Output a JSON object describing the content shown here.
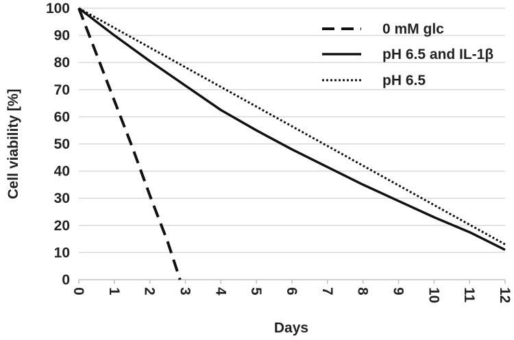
{
  "chart_data": {
    "type": "line",
    "xlabel": "Days",
    "ylabel": "Cell viability [%]",
    "xlim": [
      0,
      12
    ],
    "ylim": [
      0,
      100
    ],
    "x_ticks": [
      "0",
      "1",
      "2",
      "3",
      "4",
      "5",
      "6",
      "7",
      "8",
      "9",
      "10",
      "11",
      "12"
    ],
    "y_ticks": [
      "0",
      "10",
      "20",
      "30",
      "40",
      "50",
      "60",
      "70",
      "80",
      "90",
      "100"
    ],
    "grid": "horizontal",
    "legend_position": "top-right",
    "series": [
      {
        "name": "0 mM glc",
        "style": "dashed",
        "color": "#111111",
        "x": [
          0,
          0.5,
          1,
          1.5,
          2,
          2.5,
          2.85
        ],
        "y": [
          100,
          83,
          66,
          49,
          31,
          14,
          0
        ]
      },
      {
        "name": "pH 6.5 and IL-1β",
        "style": "solid",
        "color": "#111111",
        "x": [
          0,
          1,
          2,
          3,
          4,
          5,
          6,
          7,
          8,
          9,
          10,
          11,
          12
        ],
        "y": [
          100,
          90,
          80.5,
          71.5,
          62.5,
          55,
          48,
          41.5,
          35,
          29,
          23,
          17.5,
          11
        ]
      },
      {
        "name": "pH 6.5",
        "style": "dotted",
        "color": "#111111",
        "x": [
          0,
          12
        ],
        "y": [
          100,
          13
        ]
      }
    ]
  }
}
